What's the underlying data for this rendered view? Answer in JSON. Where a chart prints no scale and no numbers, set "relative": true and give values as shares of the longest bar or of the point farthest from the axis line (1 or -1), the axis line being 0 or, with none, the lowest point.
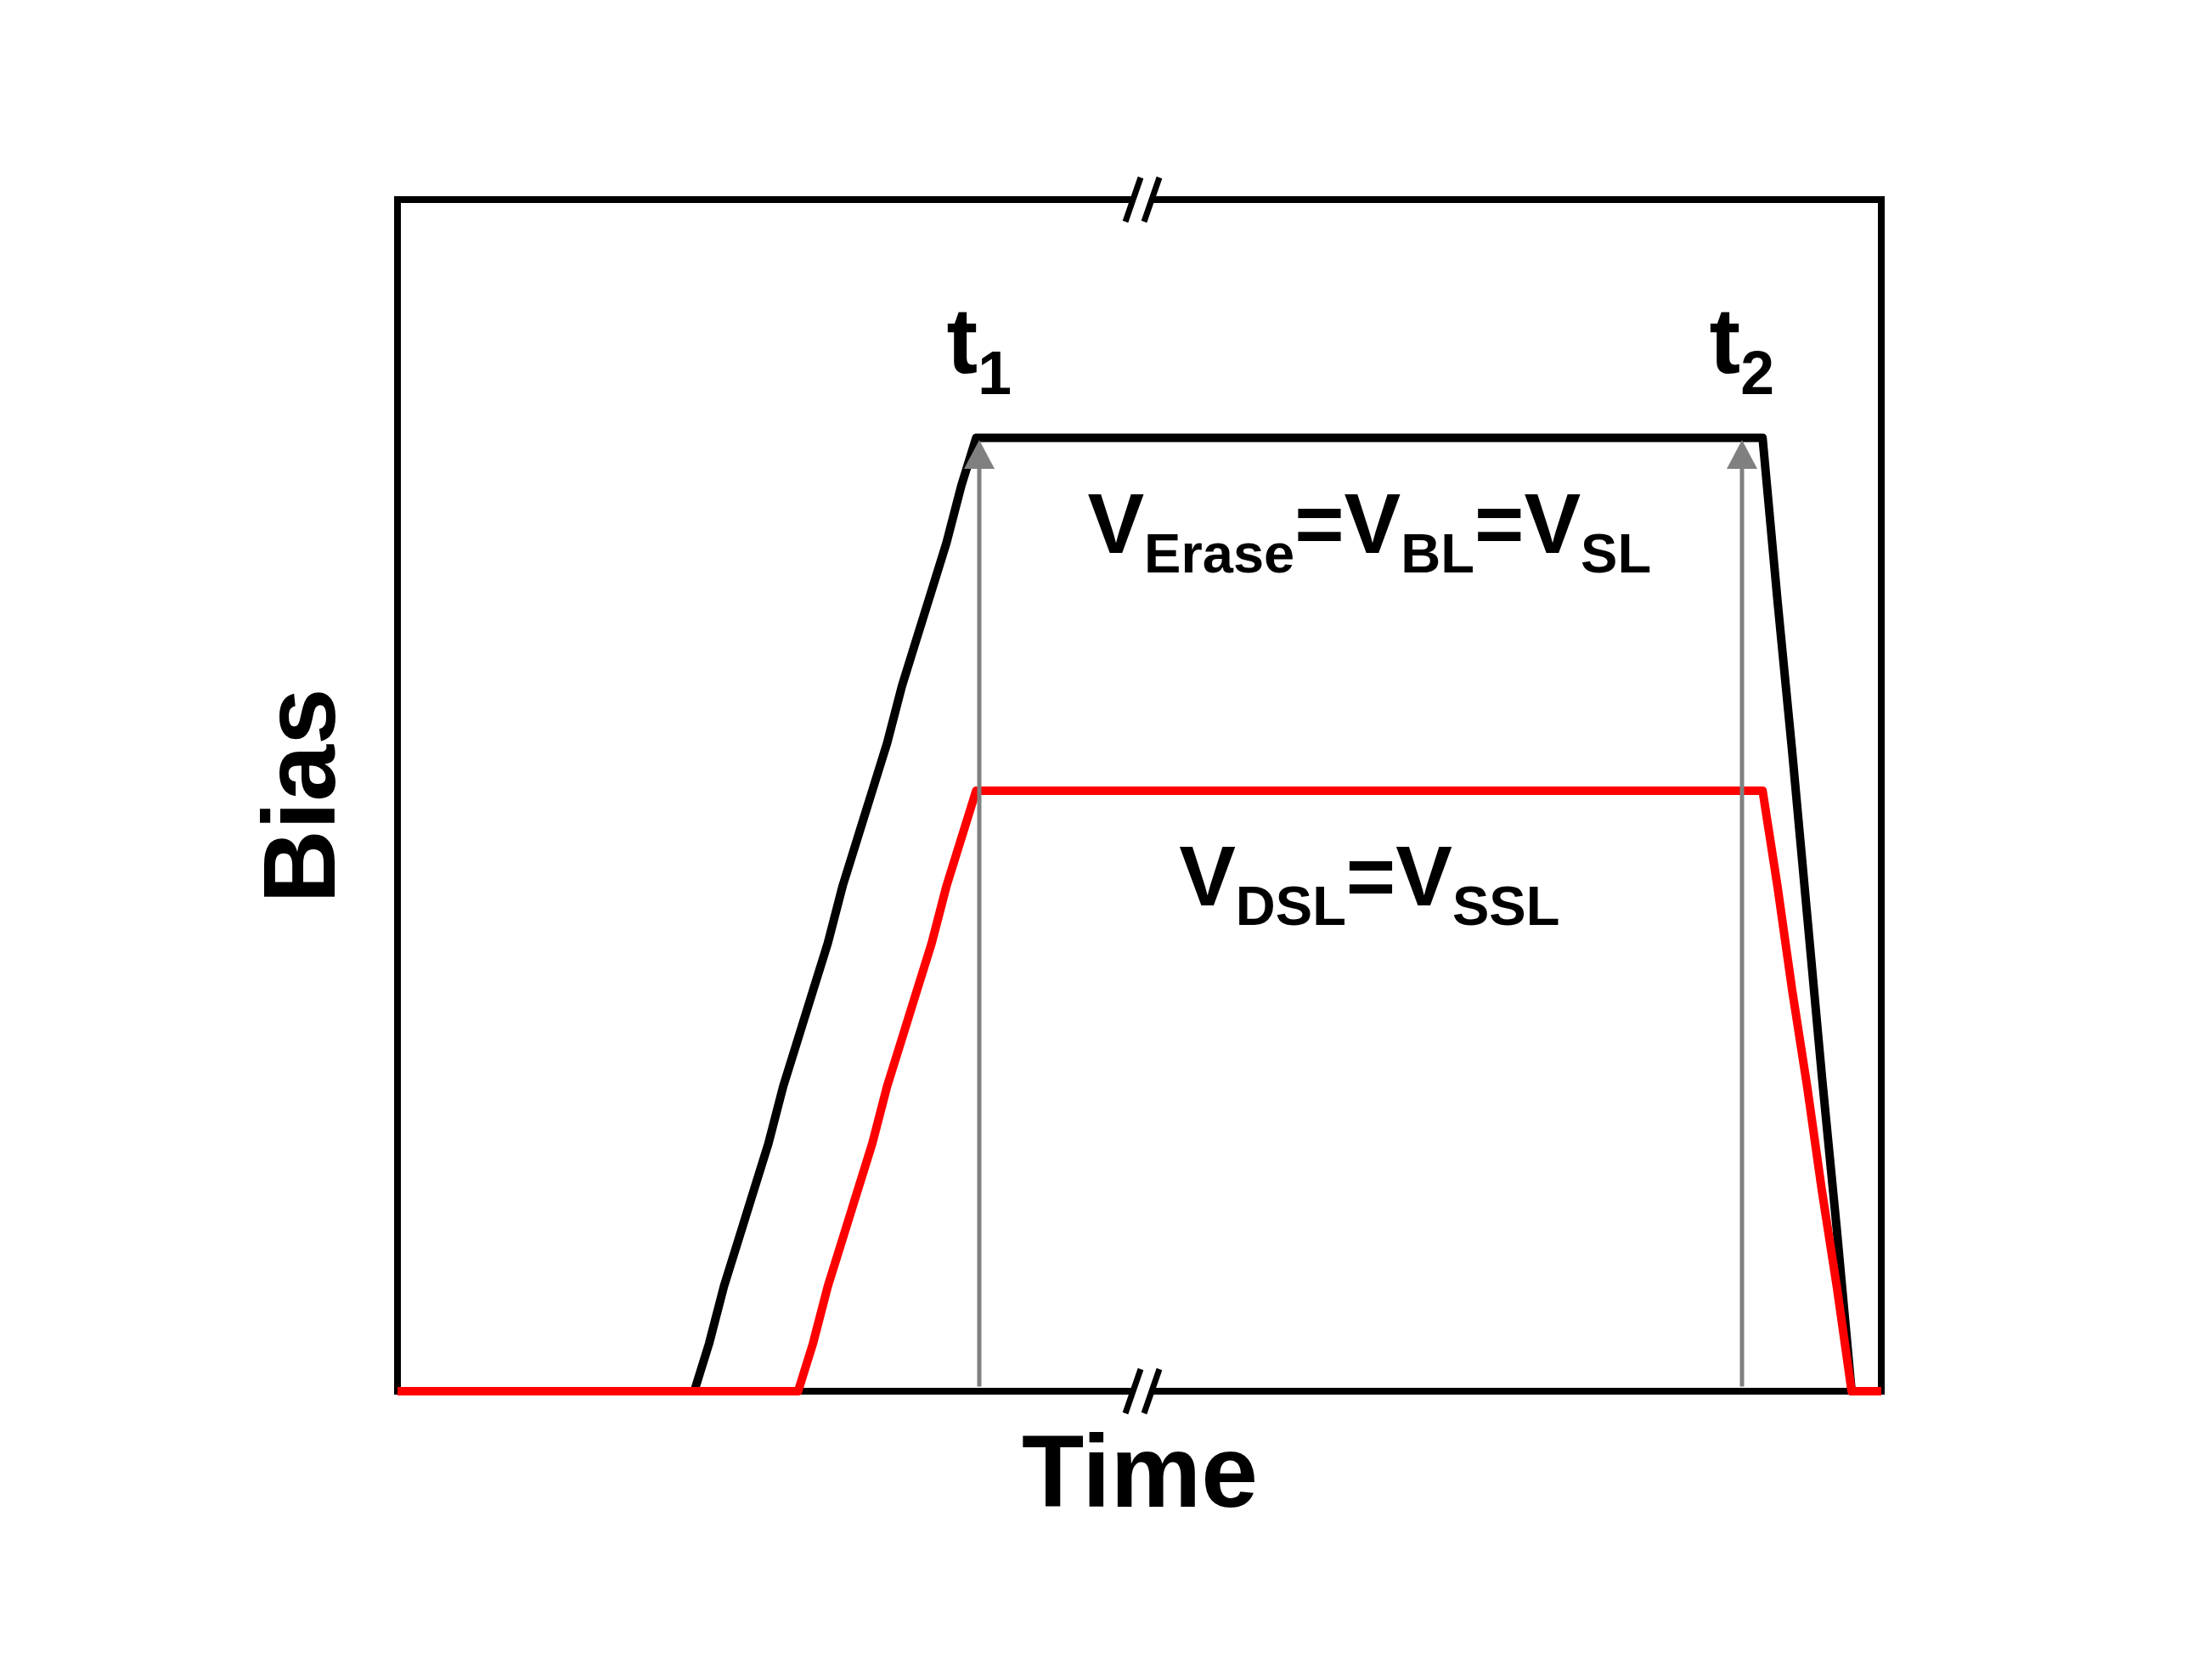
{
  "chart_data": {
    "type": "line",
    "relative": true,
    "xlabel": "Time",
    "ylabel": "Bias",
    "categories": [
      null,
      null,
      null,
      null,
      null,
      null,
      null,
      null,
      null,
      null,
      null,
      null,
      null,
      null,
      null,
      null,
      null,
      null,
      null,
      null,
      null,
      null,
      null,
      null,
      null,
      null,
      null,
      null,
      null,
      null,
      null,
      null,
      null,
      null,
      null,
      null,
      null,
      null,
      null,
      null,
      null,
      null,
      null,
      null,
      null,
      null,
      null,
      null,
      null,
      null,
      null,
      null,
      null,
      null,
      null,
      null,
      null,
      null,
      null,
      null,
      null,
      null,
      null,
      null,
      null,
      null,
      null,
      null,
      null,
      null,
      null,
      null,
      null,
      null,
      null,
      null,
      null,
      null,
      null,
      null,
      null,
      null,
      null,
      null,
      null,
      null,
      null,
      null,
      null,
      null,
      null,
      null,
      null,
      null,
      null,
      null,
      null,
      null,
      null,
      null,
      null
    ],
    "tick_labels": false,
    "line_style": "solid",
    "series": [
      {
        "name": "V$_{Erase}$=V$_{BL}$=V$_{SL}$",
        "color": "#000000",
        "values": [
          0,
          0,
          0,
          0,
          0,
          0,
          0,
          0,
          0,
          0,
          0,
          0,
          0,
          0,
          0,
          0,
          0,
          0,
          0,
          0,
          0,
          0.05,
          0.11,
          0.16,
          0.21,
          0.26,
          0.32,
          0.37,
          0.42,
          0.47,
          0.53,
          0.58,
          0.63,
          0.68,
          0.74,
          0.79,
          0.84,
          0.89,
          0.95,
          1,
          1,
          1,
          1,
          1,
          1,
          1,
          1,
          1,
          1,
          1,
          1,
          1,
          1,
          1,
          1,
          1,
          1,
          1,
          1,
          1,
          1,
          1,
          1,
          1,
          1,
          1,
          1,
          1,
          1,
          1,
          1,
          1,
          1,
          1,
          1,
          1,
          1,
          1,
          1,
          1,
          1,
          1,
          1,
          1,
          1,
          1,
          1,
          1,
          1,
          1,
          1,
          1,
          1,
          0.83,
          0.67,
          0.5,
          0.33,
          0.17,
          0,
          0,
          0
        ]
      },
      {
        "name": "V$_{DSL}$=V$_{SSL}$",
        "color": "#ff0000",
        "values": [
          0,
          0,
          0,
          0,
          0,
          0,
          0,
          0,
          0,
          0,
          0,
          0,
          0,
          0,
          0,
          0,
          0,
          0,
          0,
          0,
          0,
          0,
          0,
          0,
          0,
          0,
          0,
          0,
          0.05,
          0.11,
          0.16,
          0.21,
          0.26,
          0.32,
          0.37,
          0.42,
          0.47,
          0.53,
          0.58,
          0.63,
          0.63,
          0.63,
          0.63,
          0.63,
          0.63,
          0.63,
          0.63,
          0.63,
          0.63,
          0.63,
          0.63,
          0.63,
          0.63,
          0.63,
          0.63,
          0.63,
          0.63,
          0.63,
          0.63,
          0.63,
          0.63,
          0.63,
          0.63,
          0.63,
          0.63,
          0.63,
          0.63,
          0.63,
          0.63,
          0.63,
          0.63,
          0.63,
          0.63,
          0.63,
          0.63,
          0.63,
          0.63,
          0.63,
          0.63,
          0.63,
          0.63,
          0.63,
          0.63,
          0.63,
          0.63,
          0.63,
          0.63,
          0.63,
          0.63,
          0.63,
          0.63,
          0.63,
          0.63,
          0.53,
          0.42,
          0.32,
          0.21,
          0.11,
          0,
          0,
          0
        ]
      }
    ],
    "annotations": [
      "t$_{1}$",
      "t$_{2}$"
    ]
  }
}
